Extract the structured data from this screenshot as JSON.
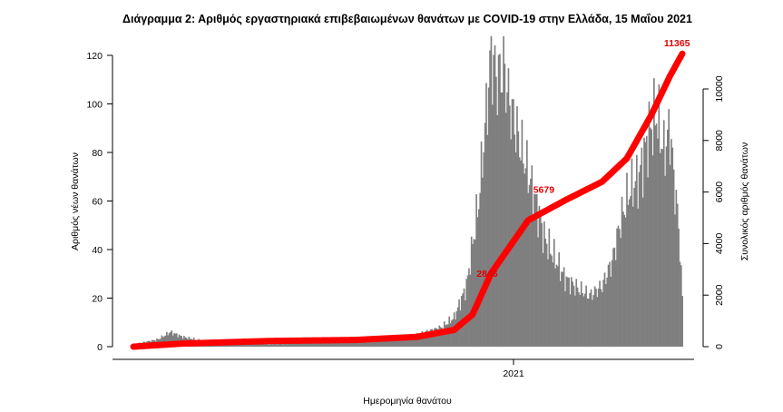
{
  "chart_data": {
    "type": "bar",
    "title": "Διάγραμμα 2: Αριθμός εργαστηριακά επιβεβαιωμένων θανάτων με COVID-19 στην Ελλάδα, 15 Μαΐου 2021",
    "xlabel": "Ημερομηνία θανάτου",
    "ylabel_left": "Αριθμός νέων θανάτων",
    "ylabel_right": "Συνολικός αριθμός θανάτων",
    "x_ticks": [
      "2021"
    ],
    "y_left_ticks": [
      "0",
      "20",
      "40",
      "60",
      "80",
      "100",
      "120"
    ],
    "y_right_ticks": [
      "0",
      "2000",
      "4000",
      "6000",
      "8000",
      "10000"
    ],
    "ylim_left": [
      0,
      125
    ],
    "ylim_right": [
      0,
      11600
    ],
    "grid": false,
    "bar_color": "#7f7f7f",
    "line_color": "#ff0000",
    "daily_series": {
      "name": "",
      "approx_days": 445,
      "anchor_points": [
        {
          "day": 0,
          "value": 1
        },
        {
          "day": 20,
          "value": 3
        },
        {
          "day": 30,
          "value": 6
        },
        {
          "day": 40,
          "value": 4
        },
        {
          "day": 60,
          "value": 2
        },
        {
          "day": 110,
          "value": 1
        },
        {
          "day": 160,
          "value": 2
        },
        {
          "day": 200,
          "value": 3
        },
        {
          "day": 230,
          "value": 5
        },
        {
          "day": 250,
          "value": 8
        },
        {
          "day": 260,
          "value": 12
        },
        {
          "day": 270,
          "value": 25
        },
        {
          "day": 280,
          "value": 60
        },
        {
          "day": 285,
          "value": 90
        },
        {
          "day": 290,
          "value": 120
        },
        {
          "day": 295,
          "value": 110
        },
        {
          "day": 300,
          "value": 115
        },
        {
          "day": 305,
          "value": 100
        },
        {
          "day": 310,
          "value": 90
        },
        {
          "day": 318,
          "value": 75
        },
        {
          "day": 325,
          "value": 62
        },
        {
          "day": 333,
          "value": 45
        },
        {
          "day": 340,
          "value": 38
        },
        {
          "day": 350,
          "value": 28
        },
        {
          "day": 360,
          "value": 24
        },
        {
          "day": 370,
          "value": 21
        },
        {
          "day": 380,
          "value": 25
        },
        {
          "day": 388,
          "value": 35
        },
        {
          "day": 395,
          "value": 52
        },
        {
          "day": 402,
          "value": 64
        },
        {
          "day": 410,
          "value": 70
        },
        {
          "day": 418,
          "value": 88
        },
        {
          "day": 424,
          "value": 96
        },
        {
          "day": 430,
          "value": 80
        },
        {
          "day": 435,
          "value": 90
        },
        {
          "day": 438,
          "value": 70
        },
        {
          "day": 442,
          "value": 50
        },
        {
          "day": 445,
          "value": 20
        }
      ]
    },
    "cumulative_series": {
      "name": "",
      "anchor_points": [
        {
          "day": 0,
          "value": 0
        },
        {
          "day": 40,
          "value": 120
        },
        {
          "day": 110,
          "value": 220
        },
        {
          "day": 180,
          "value": 260
        },
        {
          "day": 230,
          "value": 380
        },
        {
          "day": 260,
          "value": 650
        },
        {
          "day": 275,
          "value": 1250
        },
        {
          "day": 290,
          "value": 2846
        },
        {
          "day": 320,
          "value": 4900
        },
        {
          "day": 350,
          "value": 5679
        },
        {
          "day": 380,
          "value": 6400
        },
        {
          "day": 400,
          "value": 7300
        },
        {
          "day": 420,
          "value": 9000
        },
        {
          "day": 435,
          "value": 10500
        },
        {
          "day": 445,
          "value": 11365
        }
      ]
    },
    "annotations": [
      {
        "text": "2846",
        "day": 287,
        "value": 2846
      },
      {
        "text": "5679",
        "day": 333,
        "value": 5679
      },
      {
        "text": "11365",
        "day": 442,
        "value": 11365
      }
    ]
  }
}
